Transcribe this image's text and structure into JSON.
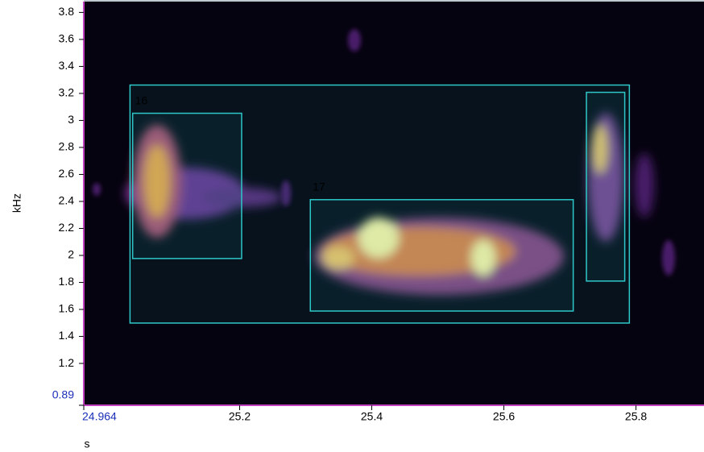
{
  "chart_data": {
    "type": "spectrogram",
    "xlabel": "s",
    "ylabel": "kHz",
    "xlim": [
      24.964,
      25.903
    ],
    "ylim": [
      0.89,
      3.88
    ],
    "xticks": [
      24.964,
      25.2,
      25.4,
      25.6,
      25.8
    ],
    "yticks": [
      0.89,
      1.2,
      1.4,
      1.6,
      1.8,
      2,
      2.2,
      2.4,
      2.6,
      2.8,
      3,
      3.2,
      3.4,
      3.6,
      3.8
    ],
    "selections": [
      {
        "x": [
          25.034,
          25.79
        ],
        "y": [
          1.499,
          3.262
        ]
      },
      {
        "label": "16",
        "x": [
          25.038,
          25.203
        ],
        "y": [
          1.977,
          3.053
        ]
      },
      {
        "label": "17",
        "x": [
          25.307,
          25.705
        ],
        "y": [
          1.588,
          2.413
        ]
      },
      {
        "x": [
          25.725,
          25.783
        ],
        "y": [
          1.81,
          3.208
        ]
      }
    ]
  }
}
